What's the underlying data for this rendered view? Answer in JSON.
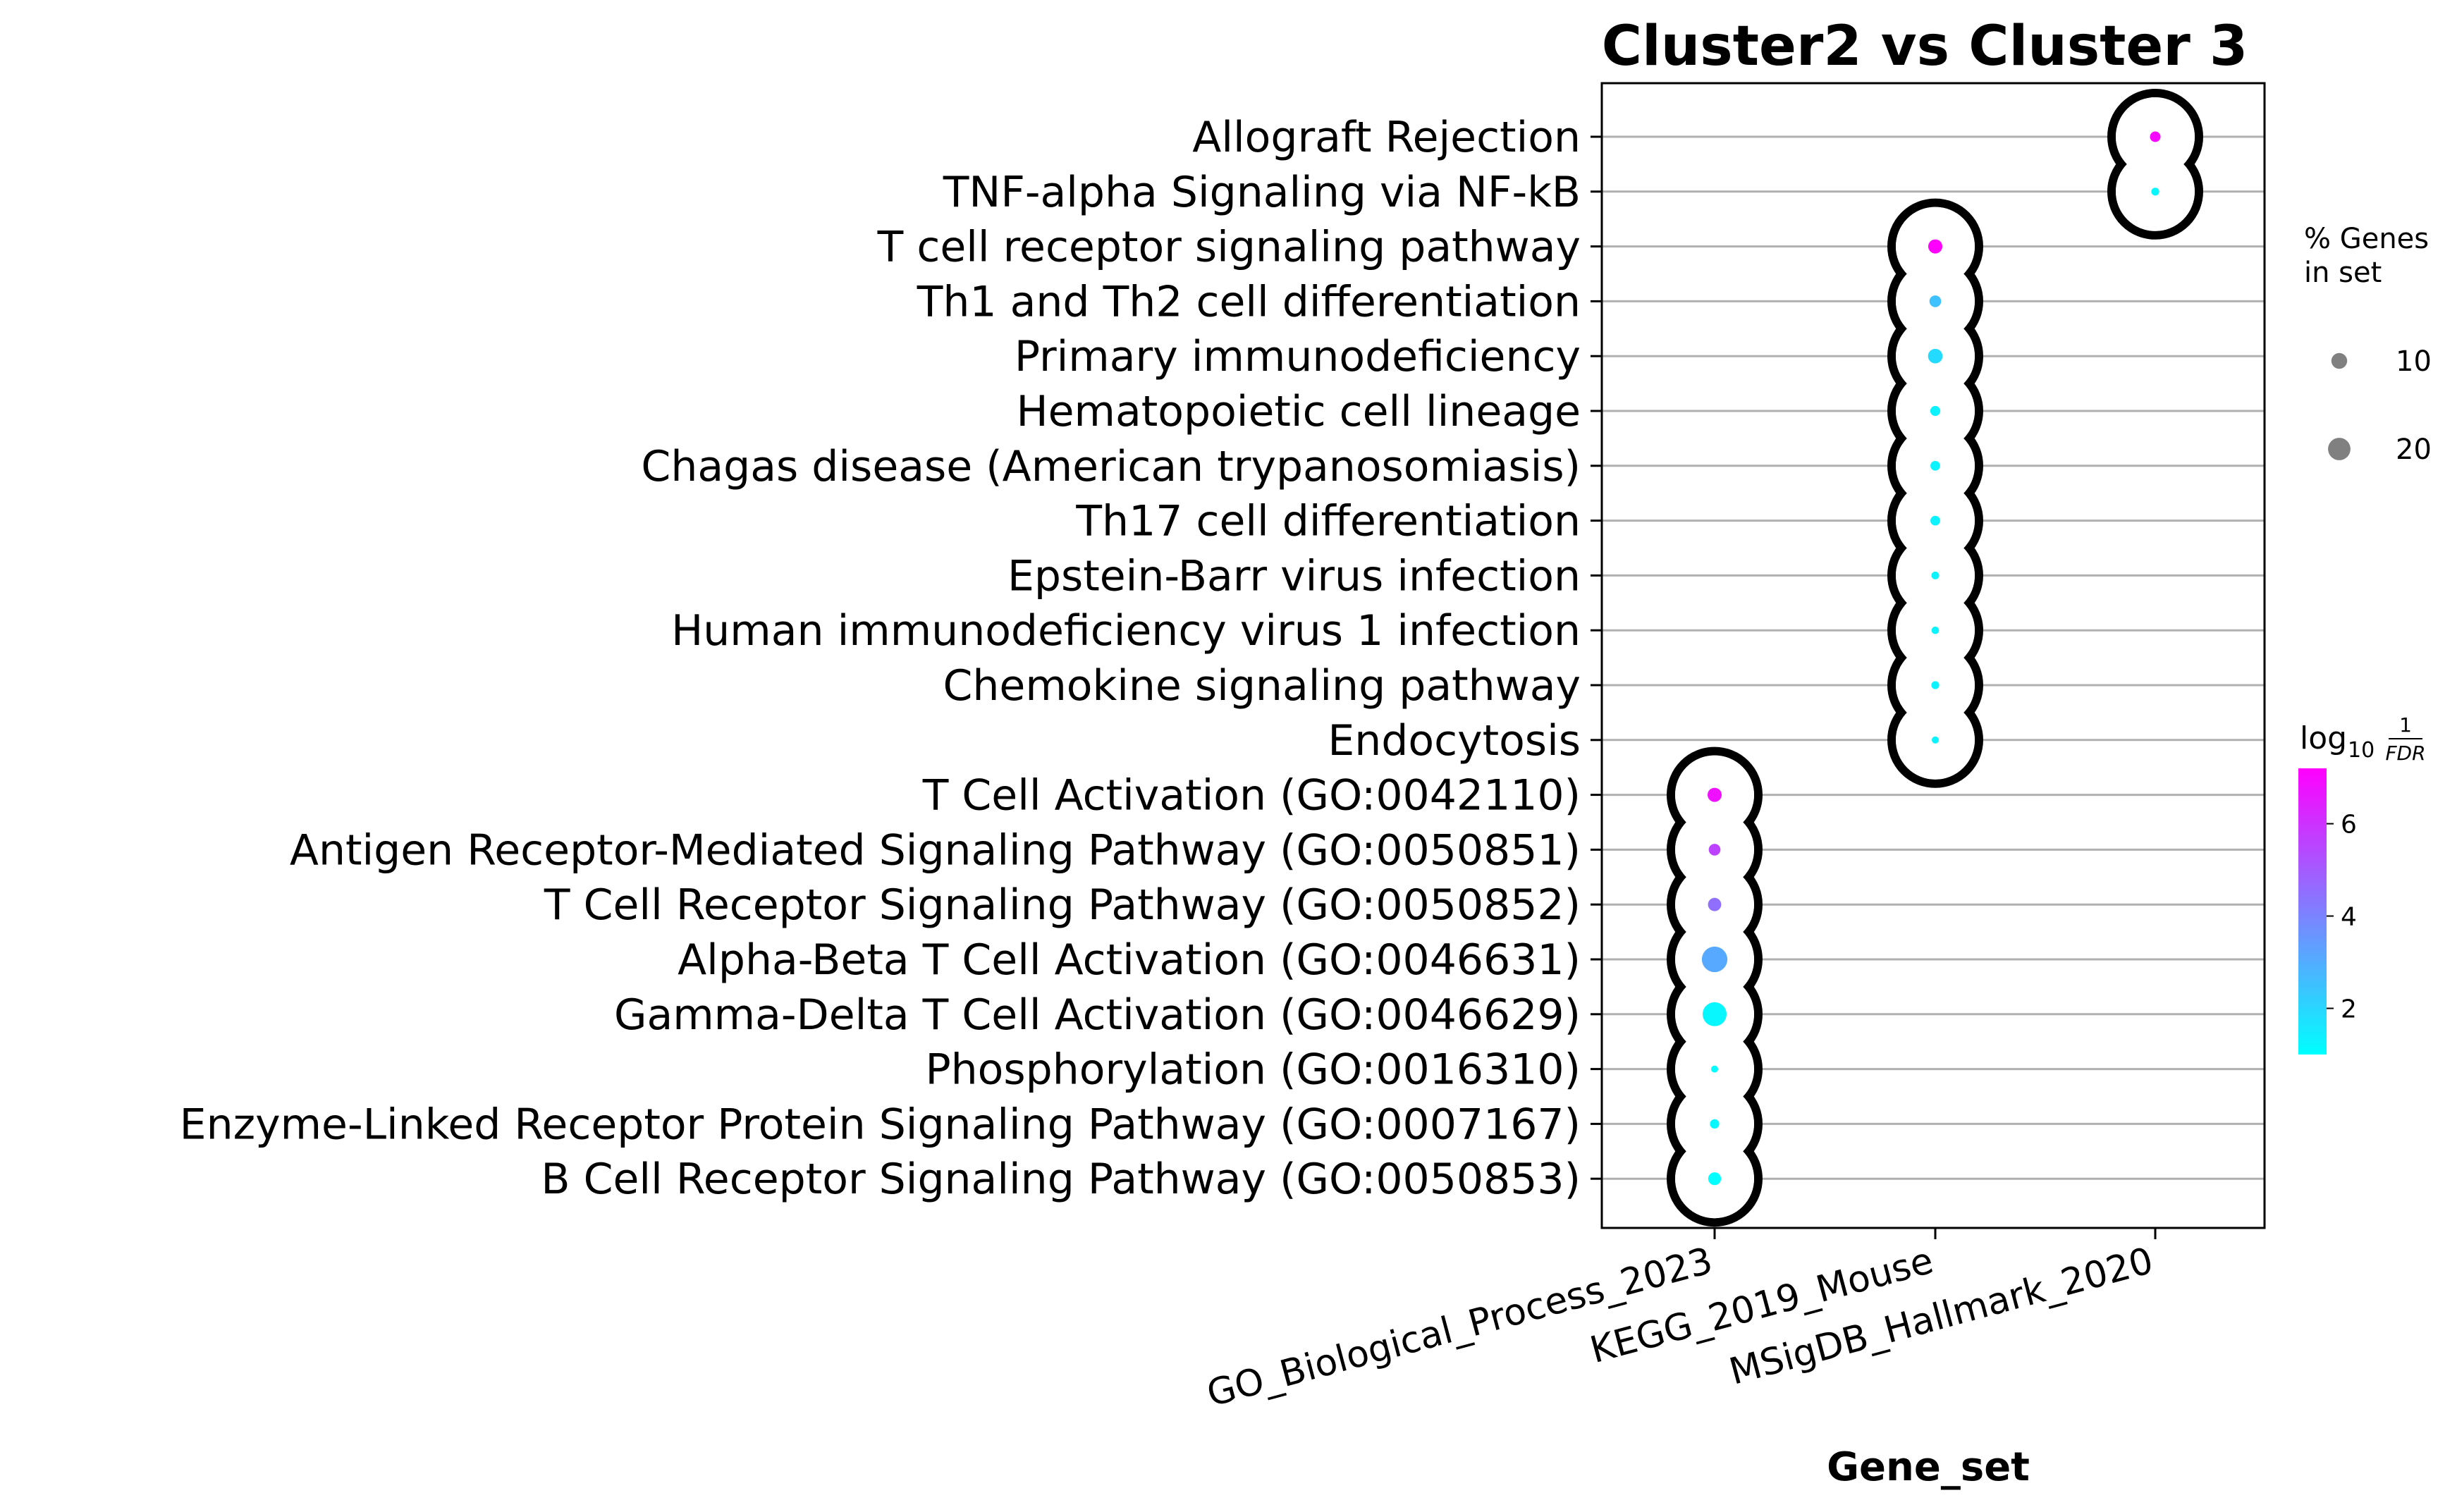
{
  "chart_data": {
    "type": "scatter",
    "title": "Cluster2 vs Cluster 3",
    "xlabel": "Gene_set",
    "ylabel": "",
    "x_categories": [
      "GO_Biological_Process_2023",
      "KEGG_2019_Mouse",
      "MSigDB_Hallmark_2020"
    ],
    "y_categories": [
      "Allograft Rejection",
      "TNF-alpha Signaling via NF-kB",
      "T cell receptor signaling pathway",
      "Th1 and Th2 cell differentiation",
      "Primary immunodeficiency",
      "Hematopoietic cell lineage",
      "Chagas disease (American trypanosomiasis)",
      "Th17 cell differentiation",
      "Epstein-Barr virus infection",
      "Human immunodeficiency virus 1 infection",
      "Chemokine signaling pathway",
      "Endocytosis",
      "T Cell Activation (GO:0042110)",
      "Antigen Receptor-Mediated Signaling Pathway (GO:0050851)",
      "T Cell Receptor Signaling Pathway (GO:0050852)",
      "Alpha-Beta T Cell Activation (GO:0046631)",
      "Gamma-Delta T Cell Activation (GO:0046629)",
      "Phosphorylation (GO:0016310)",
      "Enzyme-Linked Receptor Protein Signaling Pathway (GO:0007167)",
      "B Cell Receptor Signaling Pathway (GO:0050853)"
    ],
    "points": [
      {
        "term": "Allograft Rejection",
        "gene_set": "MSigDB_Hallmark_2020",
        "pct_genes": 4.5,
        "log10_inv_fdr": 7.0
      },
      {
        "term": "TNF-alpha Signaling via NF-kB",
        "gene_set": "MSigDB_Hallmark_2020",
        "pct_genes": 2.5,
        "log10_inv_fdr": 1.2
      },
      {
        "term": "T cell receptor signaling pathway",
        "gene_set": "KEGG_2019_Mouse",
        "pct_genes": 8,
        "log10_inv_fdr": 7.2
      },
      {
        "term": "Th1 and Th2 cell differentiation",
        "gene_set": "KEGG_2019_Mouse",
        "pct_genes": 5.5,
        "log10_inv_fdr": 2.5
      },
      {
        "term": "Primary immunodeficiency",
        "gene_set": "KEGG_2019_Mouse",
        "pct_genes": 8.5,
        "log10_inv_fdr": 1.9
      },
      {
        "term": "Hematopoietic cell lineage",
        "gene_set": "KEGG_2019_Mouse",
        "pct_genes": 4.0,
        "log10_inv_fdr": 1.3
      },
      {
        "term": "Chagas disease (American trypanosomiasis)",
        "gene_set": "KEGG_2019_Mouse",
        "pct_genes": 3.8,
        "log10_inv_fdr": 1.3
      },
      {
        "term": "Th17 cell differentiation",
        "gene_set": "KEGG_2019_Mouse",
        "pct_genes": 3.8,
        "log10_inv_fdr": 1.3
      },
      {
        "term": "Epstein-Barr virus infection",
        "gene_set": "KEGG_2019_Mouse",
        "pct_genes": 2.4,
        "log10_inv_fdr": 1.3
      },
      {
        "term": "Human immunodeficiency virus 1 infection",
        "gene_set": "KEGG_2019_Mouse",
        "pct_genes": 2.2,
        "log10_inv_fdr": 1.3
      },
      {
        "term": "Chemokine signaling pathway",
        "gene_set": "KEGG_2019_Mouse",
        "pct_genes": 2.5,
        "log10_inv_fdr": 1.3
      },
      {
        "term": "Endocytosis",
        "gene_set": "KEGG_2019_Mouse",
        "pct_genes": 2.0,
        "log10_inv_fdr": 1.3
      },
      {
        "term": "T Cell Activation (GO:0042110)",
        "gene_set": "GO_Biological_Process_2023",
        "pct_genes": 8,
        "log10_inv_fdr": 6.8
      },
      {
        "term": "Antigen Receptor-Mediated Signaling Pathway (GO:0050851)",
        "gene_set": "GO_Biological_Process_2023",
        "pct_genes": 5.5,
        "log10_inv_fdr": 5.6
      },
      {
        "term": "T Cell Receptor Signaling Pathway (GO:0050852)",
        "gene_set": "GO_Biological_Process_2023",
        "pct_genes": 7,
        "log10_inv_fdr": 4.5
      },
      {
        "term": "Alpha-Beta T Cell Activation (GO:0046631)",
        "gene_set": "GO_Biological_Process_2023",
        "pct_genes": 26,
        "log10_inv_fdr": 3.1
      },
      {
        "term": "Gamma-Delta T Cell Activation (GO:0046629)",
        "gene_set": "GO_Biological_Process_2023",
        "pct_genes": 23,
        "log10_inv_fdr": 1.2
      },
      {
        "term": "Phosphorylation (GO:0016310)",
        "gene_set": "GO_Biological_Process_2023",
        "pct_genes": 2.0,
        "log10_inv_fdr": 1.1
      },
      {
        "term": "Enzyme-Linked Receptor Protein Signaling Pathway (GO:0007167)",
        "gene_set": "GO_Biological_Process_2023",
        "pct_genes": 3.5,
        "log10_inv_fdr": 1.2
      },
      {
        "term": "B Cell Receptor Signaling Pathway (GO:0050853)",
        "gene_set": "GO_Biological_Process_2023",
        "pct_genes": 6.5,
        "log10_inv_fdr": 1.0
      }
    ],
    "size_legend": {
      "title": [
        "% Genes",
        "in set"
      ],
      "entries": [
        10,
        20
      ]
    },
    "colorbar": {
      "title": "log10 1/FDR",
      "title_base": "log",
      "title_sub": "10",
      "title_num": "1",
      "title_den": "FDR",
      "range": [
        1.0,
        7.2
      ],
      "ticks": [
        2,
        4,
        6
      ],
      "cmap_from": "#00ffff",
      "cmap_to": "#ff00ff"
    },
    "grid": "horizontal",
    "legend_position": "right"
  }
}
